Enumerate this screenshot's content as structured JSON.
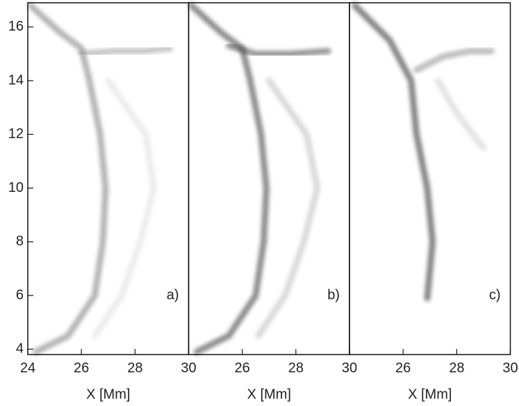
{
  "chart_data": [
    {
      "type": "line",
      "xlabel": "X [Mm]",
      "annotation": "a)",
      "xlim": [
        24,
        30
      ],
      "ylim": [
        3.8,
        16.9
      ],
      "xticks": [
        24,
        26,
        28,
        30
      ],
      "yticks": [
        4,
        6,
        8,
        10,
        12,
        14,
        16
      ],
      "series": [
        {
          "color": "#777777",
          "x": [
            24.1,
            25.2,
            26,
            26.3,
            26.7,
            26.9,
            26.8,
            26.5,
            25.5,
            24.3
          ],
          "y": [
            16.8,
            15.8,
            15.2,
            14,
            12,
            10,
            8,
            6,
            4.5,
            3.9
          ]
        },
        {
          "color": "#999999",
          "x": [
            26,
            27.2,
            28.3,
            29.3
          ],
          "y": [
            15,
            15.1,
            15.1,
            15.2
          ]
        },
        {
          "color": "#dddddd",
          "x": [
            27,
            28.4,
            28.7,
            28.2,
            27.5,
            26.5
          ],
          "y": [
            14,
            12,
            10,
            8,
            6,
            4.5
          ]
        }
      ]
    },
    {
      "type": "line",
      "xlabel": "X [Mm]",
      "annotation": "b)",
      "xlim": [
        24,
        30
      ],
      "ylim": [
        3.8,
        16.9
      ],
      "xticks": [
        26,
        28,
        30
      ],
      "series": [
        {
          "color": "#333333",
          "x": [
            24.1,
            25.2,
            26,
            26.3,
            26.7,
            26.9,
            26.8,
            26.5,
            25.5,
            24.3
          ],
          "y": [
            16.8,
            15.8,
            15.2,
            14,
            12,
            10,
            8,
            6,
            4.5,
            3.9
          ]
        },
        {
          "color": "#444444",
          "x": [
            25.5,
            26.5,
            27.8,
            29.2
          ],
          "y": [
            15.3,
            15,
            15,
            15.1
          ]
        },
        {
          "color": "#bbbbbb",
          "x": [
            27,
            28.4,
            28.8,
            28.3,
            27.6,
            26.6
          ],
          "y": [
            14,
            12,
            10,
            8,
            6,
            4.5
          ]
        }
      ]
    },
    {
      "type": "line",
      "xlabel": "X [Mm]",
      "annotation": "c)",
      "xlim": [
        24,
        30
      ],
      "ylim": [
        3.8,
        16.9
      ],
      "xticks": [
        26,
        28,
        30
      ],
      "series": [
        {
          "color": "#222222",
          "x": [
            24.2,
            25.5,
            26.3,
            26.5,
            26.9,
            27.1,
            26.9
          ],
          "y": [
            16.8,
            15.5,
            14,
            12,
            10,
            8,
            5.9
          ]
        },
        {
          "color": "#888888",
          "x": [
            26.5,
            27.5,
            28.5,
            29.3
          ],
          "y": [
            14.4,
            14.9,
            15.1,
            15.1
          ]
        },
        {
          "color": "#cccccc",
          "x": [
            27.3,
            28,
            28.6,
            29
          ],
          "y": [
            14,
            12.8,
            12,
            11.5
          ]
        }
      ]
    }
  ]
}
